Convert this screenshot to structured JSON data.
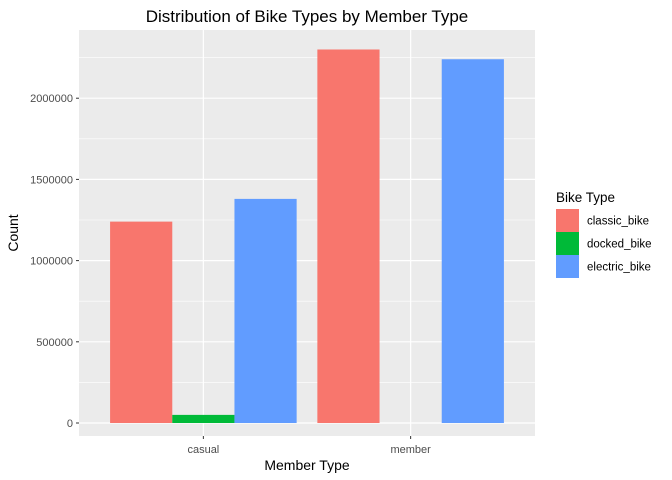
{
  "chart_data": {
    "type": "bar",
    "title": "Distribution of Bike Types by Member Type",
    "xlabel": "Member Type",
    "ylabel": "Count",
    "categories": [
      "casual",
      "member"
    ],
    "series": [
      {
        "name": "classic_bike",
        "color": "#F8766D",
        "values": [
          1240000,
          2300000
        ]
      },
      {
        "name": "docked_bike",
        "color": "#00BA38",
        "values": [
          50000,
          null
        ]
      },
      {
        "name": "electric_bike",
        "color": "#619CFF",
        "values": [
          1380000,
          2240000
        ]
      }
    ],
    "ylim": [
      -80000,
      2420000
    ],
    "yticks": [
      0,
      500000,
      1000000,
      1500000,
      2000000
    ],
    "ytick_labels": [
      "0",
      "500000",
      "1000000",
      "1500000",
      "2000000"
    ],
    "legend": {
      "title": "Bike Type",
      "position": "right"
    },
    "grid": true,
    "panel_background": "#EBEBEB"
  }
}
